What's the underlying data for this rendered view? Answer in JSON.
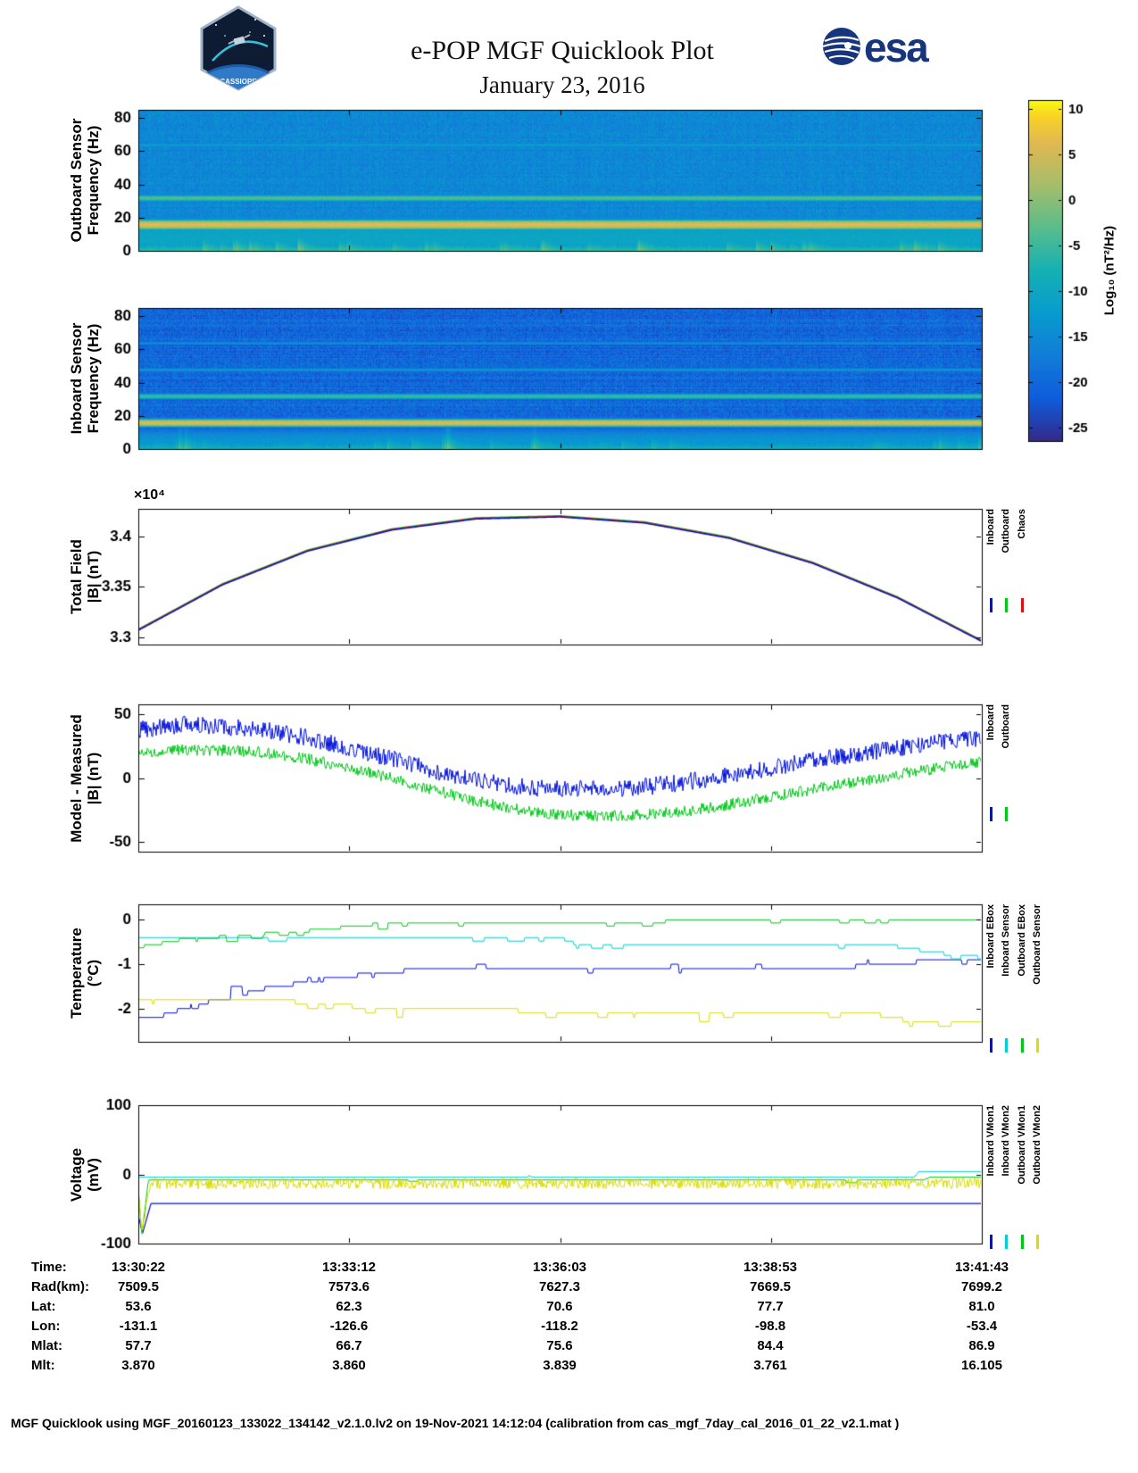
{
  "header": {
    "title": "e-POP MGF Quicklook Plot",
    "date": "January 23, 2016",
    "esa_logo": "esa",
    "mission_logo": "CASSIOPE"
  },
  "colors": {
    "esa_blue": "#16357c",
    "inboard": "#0010dd",
    "outboard": "#00c818",
    "chaos": "#dd1010",
    "cyan": "#00d0d0",
    "yellow": "#dcdc00"
  },
  "colorbar": {
    "label": "Log₁₀ (nT²/Hz)",
    "ticks": [
      "10",
      "5",
      "0",
      "-5",
      "-10",
      "-15",
      "-20",
      "-25"
    ],
    "clim": [
      -26.5,
      11
    ]
  },
  "time_ticks": [
    "13:30:22",
    "13:33:12",
    "13:36:03",
    "13:38:53",
    "13:41:43"
  ],
  "panels": {
    "outboard_spec": {
      "ylabel1": "Outboard Sensor",
      "ylabel2": "Frequency (Hz)"
    },
    "inboard_spec": {
      "ylabel1": "Inboard Sensor",
      "ylabel2": "Frequency (Hz)"
    },
    "total_field": {
      "ylabel1": "Total Field",
      "ylabel2": "|B| (nT)",
      "scale": "×10⁴",
      "legend": [
        {
          "label": "Inboard",
          "color": "#0010dd"
        },
        {
          "label": "Outboard",
          "color": "#00c818"
        },
        {
          "label": "Chaos",
          "color": "#dd1010"
        }
      ]
    },
    "model_measured": {
      "ylabel1": "Model - Measured",
      "ylabel2": "|B| (nT)",
      "legend": [
        {
          "label": "Inboard",
          "color": "#0010dd"
        },
        {
          "label": "Outboard",
          "color": "#00c818"
        }
      ]
    },
    "temperature": {
      "ylabel1": "Temperature",
      "ylabel2": "(°C)",
      "legend": [
        {
          "label": "Inboard EBox",
          "color": "#0010dd"
        },
        {
          "label": "Inboard Sensor",
          "color": "#00d0d0"
        },
        {
          "label": "Outboard EBox",
          "color": "#00c818"
        },
        {
          "label": "Outboard Sensor",
          "color": "#dcdc00"
        }
      ]
    },
    "voltage": {
      "ylabel1": "Voltage",
      "ylabel2": "(mV)",
      "legend": [
        {
          "label": "Inboard VMon1",
          "color": "#0010dd"
        },
        {
          "label": "Inboard VMon2",
          "color": "#00d0d0"
        },
        {
          "label": "Outboard VMon1",
          "color": "#00c818"
        },
        {
          "label": "Outboard VMon2",
          "color": "#dcdc00"
        }
      ]
    }
  },
  "ephemeris": {
    "rows": [
      {
        "label": "Time:",
        "values": [
          "13:30:22",
          "13:33:12",
          "13:36:03",
          "13:38:53",
          "13:41:43"
        ]
      },
      {
        "label": "Rad(km):",
        "values": [
          "7509.5",
          "7573.6",
          "7627.3",
          "7669.5",
          "7699.2"
        ]
      },
      {
        "label": "Lat:",
        "values": [
          "53.6",
          "62.3",
          "70.6",
          "77.7",
          "81.0"
        ]
      },
      {
        "label": "Lon:",
        "values": [
          "-131.1",
          "-126.6",
          "-118.2",
          "-98.8",
          "-53.4"
        ]
      },
      {
        "label": "Mlat:",
        "values": [
          "57.7",
          "66.7",
          "75.6",
          "84.4",
          "86.9"
        ]
      },
      {
        "label": "Mlt:",
        "values": [
          "3.870",
          "3.860",
          "3.839",
          "3.761",
          "16.105"
        ]
      }
    ]
  },
  "footer": "MGF Quicklook using MGF_20160123_133022_134142_v2.1.0.lv2 on 19-Nov-2021 14:12:04 (calibration from cas_mgf_7day_cal_2016_01_22_v2.1.mat )",
  "chart_data": [
    {
      "type": "heatmap",
      "name": "outboard_spectrogram",
      "ylabel": "Outboard Sensor Frequency (Hz)",
      "ylim": [
        0,
        85
      ],
      "yticks": [
        0,
        20,
        40,
        60,
        80
      ],
      "x_range": [
        "13:30:22",
        "13:41:43"
      ],
      "colorbar_label": "Log10 (nT^2/Hz)",
      "background_db": -15.5,
      "noise_db": 2.0,
      "row_stripe": 0.8,
      "features": [
        {
          "kind": "tone",
          "freq": 16,
          "width": 1.8,
          "level": 6.5
        },
        {
          "kind": "tone",
          "freq": 32,
          "width": 1.4,
          "level": -3.5
        },
        {
          "kind": "tone",
          "freq": 64,
          "width": 1.2,
          "level": -12
        },
        {
          "kind": "band",
          "freq": 8,
          "width": 9,
          "level": -10.5
        },
        {
          "kind": "bursts",
          "base_hz": 2,
          "rise_hz": 6,
          "level": -6
        }
      ]
    },
    {
      "type": "heatmap",
      "name": "inboard_spectrogram",
      "ylabel": "Inboard Sensor Frequency (Hz)",
      "ylim": [
        0,
        85
      ],
      "yticks": [
        0,
        20,
        40,
        60,
        80
      ],
      "x_range": [
        "13:30:22",
        "13:41:43"
      ],
      "colorbar_label": "Log10 (nT^2/Hz)",
      "background_db": -20,
      "noise_db": 2.5,
      "row_stripe": 1.6,
      "features": [
        {
          "kind": "tone",
          "freq": 16,
          "width": 1.4,
          "level": 6
        },
        {
          "kind": "tone",
          "freq": 32,
          "width": 1.2,
          "level": -5
        },
        {
          "kind": "tone",
          "freq": 48,
          "width": 1.0,
          "level": -13
        },
        {
          "kind": "tone",
          "freq": 64,
          "width": 1.0,
          "level": -14.5
        },
        {
          "kind": "band",
          "freq": 5,
          "width": 5,
          "level": -13.5
        },
        {
          "kind": "bursts",
          "base_hz": 1.5,
          "rise_hz": 14,
          "level": -9
        }
      ]
    },
    {
      "type": "line",
      "name": "total_field",
      "ylabel": "Total Field |B| (nT)",
      "y_scale_label": "×10⁴",
      "ylim": [
        3.293,
        3.427
      ],
      "yticks": [
        3.3,
        3.35,
        3.4
      ],
      "seed": 5,
      "x": [
        0,
        0.1,
        0.2,
        0.3,
        0.4,
        0.5,
        0.6,
        0.7,
        0.8,
        0.9,
        1.0
      ],
      "series": [
        {
          "name": "Outboard",
          "color": "#00c818",
          "style": "smooth",
          "width": 1.4,
          "y": [
            3.3082,
            3.3532,
            3.3862,
            3.4072,
            3.4182,
            3.4202,
            3.4142,
            3.3992,
            3.3742,
            3.3402,
            3.2972
          ]
        },
        {
          "name": "Chaos",
          "color": "#dd1010",
          "style": "smooth",
          "width": 1.4,
          "y": [
            3.3076,
            3.3526,
            3.3856,
            3.4066,
            3.4176,
            3.4196,
            3.4136,
            3.3986,
            3.3736,
            3.3396,
            3.2966
          ]
        },
        {
          "name": "Inboard",
          "color": "#0010dd",
          "style": "smooth",
          "width": 1.4,
          "y": [
            3.307,
            3.352,
            3.385,
            3.406,
            3.417,
            3.419,
            3.413,
            3.398,
            3.373,
            3.339,
            3.296
          ]
        }
      ]
    },
    {
      "type": "line",
      "name": "model_minus_measured",
      "ylabel": "Model - Measured |B| (nT)",
      "ylim": [
        -58,
        58
      ],
      "yticks": [
        -50,
        0,
        50
      ],
      "seed": 17,
      "x": [
        0,
        0.05,
        0.1,
        0.15,
        0.2,
        0.25,
        0.3,
        0.35,
        0.4,
        0.45,
        0.5,
        0.55,
        0.6,
        0.65,
        0.7,
        0.75,
        0.8,
        0.85,
        0.9,
        0.95,
        1
      ],
      "series": [
        {
          "name": "Inboard",
          "color": "#0010dd",
          "style": "noisy",
          "noise": 7,
          "width": 1,
          "y": [
            38,
            42,
            41,
            38,
            32,
            24,
            15,
            6,
            -2,
            -7,
            -9,
            -9,
            -7,
            -3,
            2,
            8,
            14,
            19,
            24,
            28,
            32
          ]
        },
        {
          "name": "Outboard",
          "color": "#00c818",
          "style": "noisy",
          "noise": 4.5,
          "width": 1,
          "y": [
            20,
            22,
            22,
            20,
            15,
            8,
            0,
            -9,
            -18,
            -25,
            -29,
            -30,
            -29,
            -26,
            -21,
            -15,
            -9,
            -3,
            3,
            8,
            13
          ]
        }
      ]
    },
    {
      "type": "line",
      "name": "temperature",
      "ylabel": "Temperature (°C)",
      "ylim": [
        -2.75,
        0.35
      ],
      "yticks": [
        0,
        -1,
        -2
      ],
      "seed": 31,
      "series": [
        {
          "name": "Inboard EBox",
          "color": "#0010dd",
          "style": "steps",
          "quant": 0.1,
          "blip_p": 0.08,
          "width": 1,
          "x": [
            0,
            0.03,
            0.07,
            0.11,
            0.15,
            0.2,
            0.28,
            0.35,
            0.85,
            0.9,
            1
          ],
          "y": [
            -2.2,
            -2.15,
            -1.9,
            -1.75,
            -1.55,
            -1.4,
            -1.2,
            -1.1,
            -1.05,
            -0.95,
            -0.92
          ]
        },
        {
          "name": "Inboard Sensor",
          "color": "#00d0d0",
          "style": "steps",
          "quant": 0.08,
          "blip_p": 0.12,
          "blip_dir": -1,
          "width": 1,
          "x": [
            0,
            0.5,
            0.52,
            0.9,
            0.95,
            1
          ],
          "y": [
            -0.38,
            -0.4,
            -0.55,
            -0.6,
            -0.75,
            -0.85
          ]
        },
        {
          "name": "Outboard EBox",
          "color": "#00c818",
          "style": "steps",
          "quant": 0.07,
          "blip_p": 0.15,
          "blip_dir": -1,
          "width": 1,
          "x": [
            0,
            0.05,
            0.12,
            0.2,
            0.28,
            0.5,
            1
          ],
          "y": [
            -0.62,
            -0.45,
            -0.35,
            -0.25,
            -0.1,
            -0.04,
            -0.02
          ]
        },
        {
          "name": "Outboard Sensor",
          "color": "#dcdc00",
          "style": "steps",
          "quant": 0.1,
          "blip_p": 0.14,
          "blip_dir": -1,
          "width": 1,
          "x": [
            0,
            0.2,
            0.28,
            0.45,
            0.65,
            0.88,
            0.93,
            1
          ],
          "y": [
            -1.8,
            -1.85,
            -2.0,
            -2.05,
            -2.1,
            -2.15,
            -2.3,
            -2.35
          ]
        }
      ]
    },
    {
      "type": "line",
      "name": "voltage",
      "ylabel": "Voltage (mV)",
      "ylim": [
        -100,
        100
      ],
      "yticks": [
        -100,
        0,
        100
      ],
      "seed": 47,
      "series": [
        {
          "name": "Inboard VMon1",
          "color": "#0010dd",
          "style": "smooth",
          "width": 1.2,
          "x": [
            0,
            0.005,
            0.015,
            1
          ],
          "y": [
            -60,
            -85,
            -42,
            -42
          ]
        },
        {
          "name": "Inboard VMon2",
          "color": "#00d0d0",
          "style": "steps",
          "quant": 2,
          "blip_p": 0.01,
          "blip_dir": 1,
          "width": 1,
          "x": [
            0,
            0.92,
            0.925,
            1
          ],
          "y": [
            -4,
            -4,
            4,
            4
          ]
        },
        {
          "name": "Outboard VMon1",
          "color": "#00c818",
          "style": "steps",
          "quant": 2,
          "blip_p": 0.03,
          "blip_dir": -1,
          "width": 1,
          "x": [
            0,
            0.004,
            0.012,
            0.93,
            0.94,
            1
          ],
          "y": [
            -20,
            -88,
            -8,
            -8,
            -4,
            -4
          ]
        },
        {
          "name": "Outboard VMon2",
          "color": "#dcdc00",
          "style": "noisy",
          "noise": 8,
          "width": 1,
          "x": [
            0,
            0.004,
            0.015,
            1
          ],
          "y": [
            -30,
            -80,
            -13,
            -13
          ]
        }
      ]
    }
  ]
}
